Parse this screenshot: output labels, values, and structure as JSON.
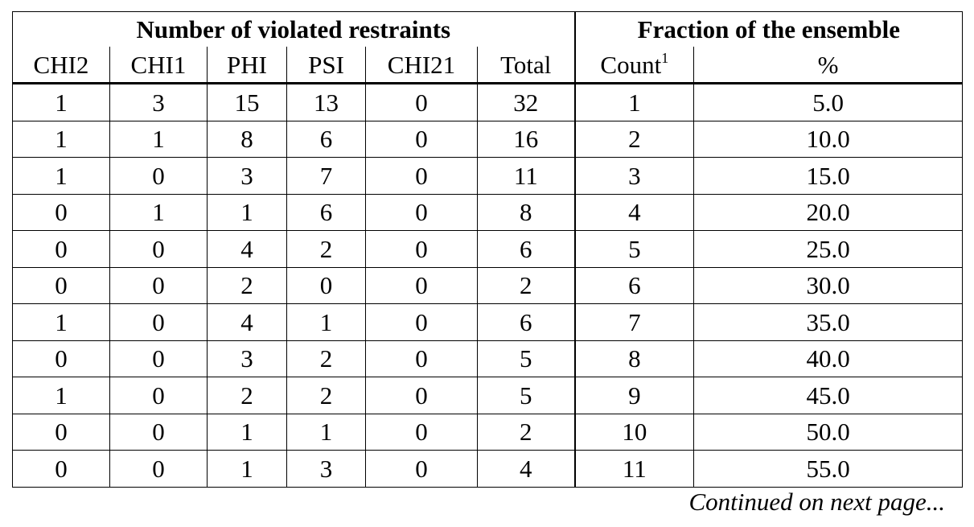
{
  "table": {
    "group_headers": [
      "Number of violated restraints",
      "Fraction of the ensemble"
    ],
    "columns": [
      "CHI2",
      "CHI1",
      "PHI",
      "PSI",
      "CHI21",
      "Total",
      "Count",
      "%"
    ],
    "count_footnote_mark": "1",
    "rows": [
      [
        "1",
        "3",
        "15",
        "13",
        "0",
        "32",
        "1",
        "5.0"
      ],
      [
        "1",
        "1",
        "8",
        "6",
        "0",
        "16",
        "2",
        "10.0"
      ],
      [
        "1",
        "0",
        "3",
        "7",
        "0",
        "11",
        "3",
        "15.0"
      ],
      [
        "0",
        "1",
        "1",
        "6",
        "0",
        "8",
        "4",
        "20.0"
      ],
      [
        "0",
        "0",
        "4",
        "2",
        "0",
        "6",
        "5",
        "25.0"
      ],
      [
        "0",
        "0",
        "2",
        "0",
        "0",
        "2",
        "6",
        "30.0"
      ],
      [
        "1",
        "0",
        "4",
        "1",
        "0",
        "6",
        "7",
        "35.0"
      ],
      [
        "0",
        "0",
        "3",
        "2",
        "0",
        "5",
        "8",
        "40.0"
      ],
      [
        "1",
        "0",
        "2",
        "2",
        "0",
        "5",
        "9",
        "45.0"
      ],
      [
        "0",
        "0",
        "1",
        "1",
        "0",
        "2",
        "10",
        "50.0"
      ],
      [
        "0",
        "0",
        "1",
        "3",
        "0",
        "4",
        "11",
        "55.0"
      ]
    ]
  },
  "continuation_note": "Continued on next page..."
}
